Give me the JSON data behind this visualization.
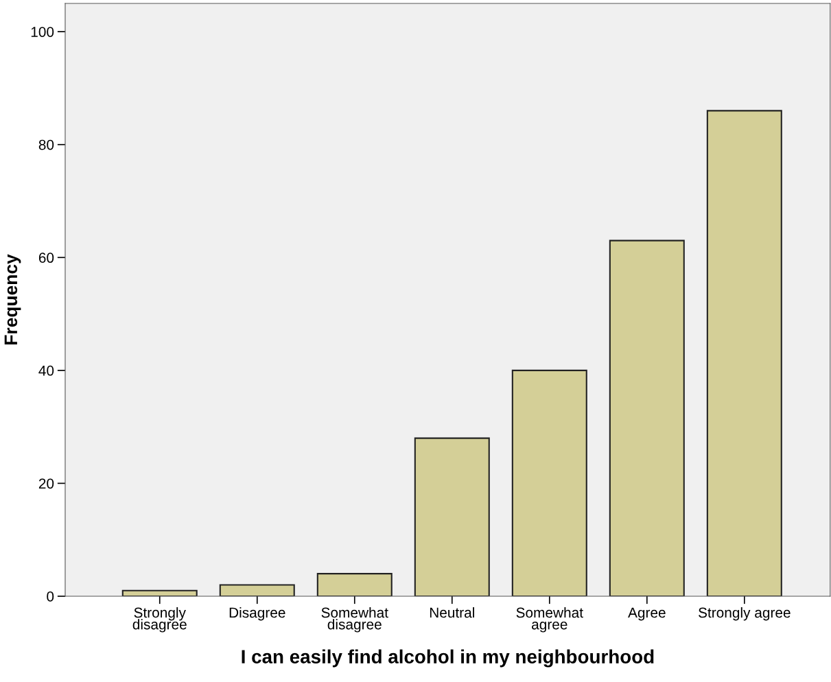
{
  "chart_data": {
    "type": "bar",
    "xlabel": "I can easily find alcohol in my neighbourhood",
    "ylabel": "Frequency",
    "categories": [
      "Strongly\ndisagree",
      "Disagree",
      "Somewhat\ndisagree",
      "Neutral",
      "Somewhat\nagree",
      "Agree",
      "Strongly agree"
    ],
    "values": [
      1,
      2,
      4,
      28,
      40,
      63,
      86
    ],
    "color": "#d4cf97",
    "ylim": [
      0,
      105
    ],
    "yticks": [
      0,
      20,
      40,
      60,
      80,
      100
    ],
    "grid": false
  }
}
